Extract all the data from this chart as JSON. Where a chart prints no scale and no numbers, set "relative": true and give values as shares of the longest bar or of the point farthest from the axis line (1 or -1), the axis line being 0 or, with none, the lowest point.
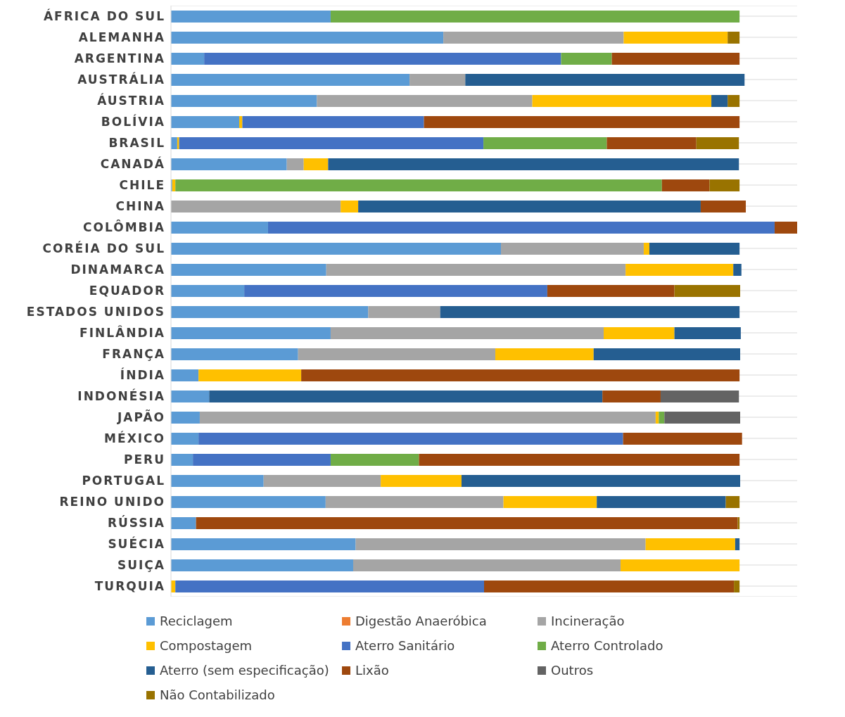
{
  "chart_data": {
    "type": "bar",
    "orientation": "horizontal",
    "stacked": true,
    "relative": true,
    "grid": "y",
    "legend": "bottom",
    "categories": [
      "ÁFRICA DO SUL",
      "ALEMANHA",
      "ARGENTINA",
      "AUSTRÁLIA",
      "ÁUSTRIA",
      "BOLÍVIA",
      "BRASIL",
      "CANADÁ",
      "CHILE",
      "CHINA",
      "COLÔMBIA",
      "CORÉIA DO SUL",
      "DINAMARCA",
      "EQUADOR",
      "ESTADOS UNIDOS",
      "FINLÂNDIA",
      "FRANÇA",
      "ÍNDIA",
      "INDONÉSIA",
      "JAPÃO",
      "MÉXICO",
      "PERU",
      "PORTUGAL",
      "REINO UNIDO",
      "RÚSSIA",
      "SUÉCIA",
      "SUIÇA",
      "TURQUIA"
    ],
    "series": [
      {
        "name": "Reciclagem",
        "color": "#5b9bd5",
        "values": [
          0.255,
          0.435,
          0.053,
          0.381,
          0.233,
          0.109,
          0.01,
          0.185,
          0.002,
          0,
          0.155,
          0.527,
          0.248,
          0.117,
          0.315,
          0.255,
          0.203,
          0.044,
          0.061,
          0.046,
          0.044,
          0.035,
          0.148,
          0.247,
          0.04,
          0.295,
          0.291,
          0
        ]
      },
      {
        "name": "Digestão Anaeróbica",
        "color": "#ed7d31",
        "values": [
          0,
          0,
          0,
          0,
          0,
          0,
          0,
          0,
          0,
          0,
          0,
          0,
          0,
          0,
          0,
          0,
          0,
          0,
          0,
          0,
          0,
          0,
          0,
          0,
          0,
          0,
          0,
          0
        ]
      },
      {
        "name": "Incineração",
        "color": "#a5a5a5",
        "values": [
          0,
          0.288,
          0,
          0.089,
          0.344,
          0,
          0,
          0.027,
          0,
          0.271,
          0,
          0.228,
          0.478,
          0,
          0.115,
          0.436,
          0.315,
          0,
          0,
          0.728,
          0,
          0,
          0.187,
          0.284,
          0,
          0.463,
          0.427,
          0
        ]
      },
      {
        "name": "Compostagem",
        "color": "#ffc000",
        "values": [
          0,
          0.166,
          0,
          0,
          0.286,
          0.005,
          0.003,
          0.039,
          0.005,
          0.028,
          0,
          0.009,
          0.172,
          0,
          0,
          0.113,
          0.157,
          0.164,
          0,
          0.005,
          0,
          0,
          0.129,
          0.149,
          0,
          0.143,
          0.19,
          0.007
        ]
      },
      {
        "name": "Aterro Sanitário",
        "color": "#4472c4",
        "values": [
          0,
          0,
          0.57,
          0,
          0,
          0.29,
          0.486,
          0,
          0,
          0,
          0.809,
          0,
          0,
          0.484,
          0,
          0,
          0,
          0,
          0,
          0,
          0.678,
          0.22,
          0,
          0,
          0,
          0,
          0,
          0.493
        ]
      },
      {
        "name": "Aterro Controlado",
        "color": "#70ad47",
        "values": [
          0.653,
          0,
          0.081,
          0,
          0,
          0,
          0.197,
          0,
          0.777,
          0,
          0,
          0,
          0,
          0,
          0,
          0,
          0,
          0,
          0,
          0.009,
          0,
          0.141,
          0,
          0,
          0,
          0,
          0,
          0
        ]
      },
      {
        "name": "Aterro (sem especificação)",
        "color": "#255e91",
        "values": [
          0,
          0,
          0,
          0.446,
          0.026,
          0,
          0,
          0.656,
          0,
          0.547,
          0,
          0.144,
          0.013,
          0,
          0.478,
          0.106,
          0.234,
          0,
          0.628,
          0,
          0,
          0,
          0.445,
          0.206,
          0,
          0.007,
          0,
          0
        ]
      },
      {
        "name": "Lixão",
        "color": "#9e480e",
        "values": [
          0,
          0,
          0.204,
          0,
          0,
          0.504,
          0.143,
          0,
          0.076,
          0.072,
          0.036,
          0,
          0,
          0.203,
          0,
          0,
          0,
          0.7,
          0.093,
          0,
          0.19,
          0.512,
          0,
          0,
          0.865,
          0,
          0,
          0.399
        ]
      },
      {
        "name": "Outros",
        "color": "#636363",
        "values": [
          0,
          0,
          0,
          0,
          0,
          0,
          0,
          0,
          0,
          0,
          0,
          0,
          0,
          0,
          0,
          0,
          0,
          0,
          0.125,
          0.121,
          0,
          0,
          0,
          0,
          0,
          0,
          0,
          0
        ]
      },
      {
        "name": "Não Contabilizado",
        "color": "#997300",
        "values": [
          0,
          0.019,
          0,
          0,
          0.019,
          0,
          0.068,
          0,
          0.048,
          0,
          0,
          0,
          0,
          0.105,
          0,
          0,
          0,
          0,
          0,
          0,
          0,
          0,
          0,
          0.022,
          0.003,
          0,
          0,
          0.009
        ]
      }
    ]
  }
}
